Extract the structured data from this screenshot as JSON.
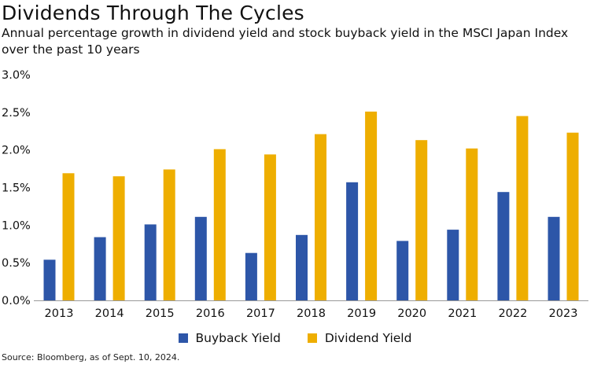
{
  "colors": {
    "buyback": "#2d56a8",
    "dividend": "#eeae00",
    "axis": "#999999"
  },
  "chart_data": {
    "type": "bar",
    "title": "Dividends Through The Cycles",
    "subtitle": "Annual percentage growth in dividend yield and stock buyback yield in the MSCI Japan Index over the past 10 years",
    "categories": [
      "2013",
      "2014",
      "2015",
      "2016",
      "2017",
      "2018",
      "2019",
      "2020",
      "2021",
      "2022",
      "2023"
    ],
    "series": [
      {
        "name": "Buyback Yield",
        "values": [
          0.54,
          0.84,
          1.01,
          1.11,
          0.63,
          0.87,
          1.57,
          0.79,
          0.94,
          1.44,
          1.11
        ]
      },
      {
        "name": "Dividend Yield",
        "values": [
          1.69,
          1.65,
          1.74,
          2.01,
          1.94,
          2.21,
          2.51,
          2.13,
          2.02,
          2.45,
          2.23
        ]
      }
    ],
    "ylim": [
      0,
      3.0
    ],
    "yticks": [
      "0.0%",
      "0.5%",
      "1.0%",
      "1.5%",
      "2.0%",
      "2.5%",
      "3.0%"
    ],
    "ytick_values": [
      0,
      0.5,
      1.0,
      1.5,
      2.0,
      2.5,
      3.0
    ],
    "grid": false,
    "legend_position": "bottom-center",
    "source": "Source: Bloomberg, as of Sept. 10, 2024."
  }
}
